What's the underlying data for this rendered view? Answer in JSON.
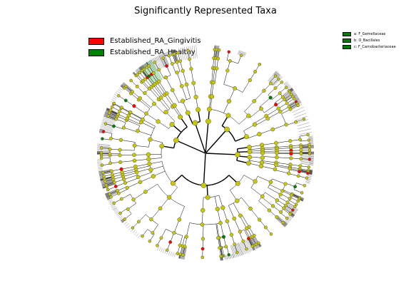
{
  "title": "Significantly Represented Taxa",
  "legend": [
    {
      "label": "Established_RA_Gingivitis",
      "color": "#ff0000"
    },
    {
      "label": "Established_RA_Healthy",
      "color": "#008000"
    }
  ],
  "taxa_legend": [
    {
      "label": "a: F_Gemellaceae",
      "color": "#008000"
    },
    {
      "label": "b: O_Bacillales",
      "color": "#008000"
    },
    {
      "label": "c: F_Carnobacteriaceae",
      "color": "#008000"
    }
  ],
  "colors": {
    "node": "#c8c800",
    "gingivitis": "#ff0000",
    "healthy": "#008000",
    "highlight": "#8fd18f"
  }
}
